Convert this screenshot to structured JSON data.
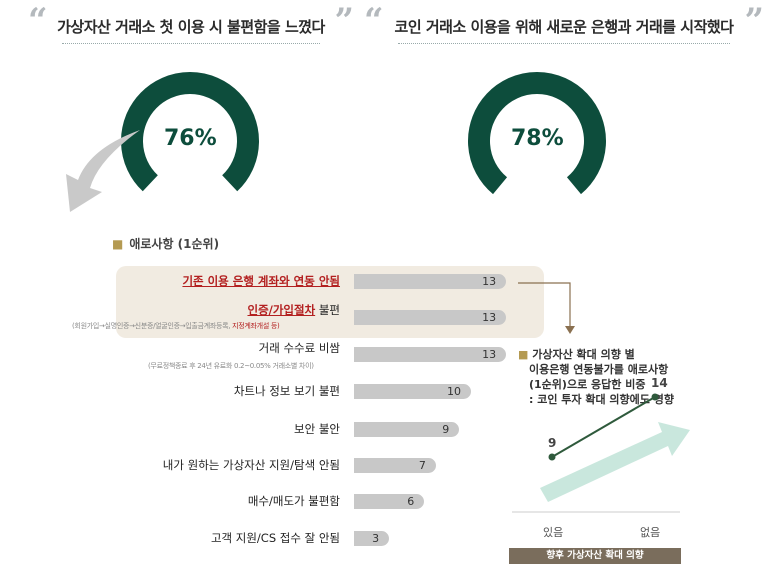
{
  "quotes": [
    {
      "text": "가상자산 거래소 첫 이용 시 불편함을 느꼈다"
    },
    {
      "text": "코인 거래소 이용을 위해 새로운 은행과 거래를 시작했다"
    }
  ],
  "donuts": [
    {
      "value": 76,
      "label": "76%"
    },
    {
      "value": 78,
      "label": "78%"
    }
  ],
  "colors": {
    "donut": "#0d4d3c",
    "bar": "#c8c8c8",
    "highlight": "#f1ebe1",
    "accent_red": "#b32020",
    "line": "#2f5a3c",
    "arrow": "#bfe3d7",
    "x_title_bg": "#7a6d5c"
  },
  "chart_data": [
    {
      "type": "bar",
      "orientation": "horizontal",
      "title": "애로사항 (1순위)",
      "categories": [
        "기존 이용 은행 계좌와 연동 안됨",
        "인증/가입절차 불편",
        "거래 수수료 비쌈",
        "차트나 정보 보기 불편",
        "보안 불안",
        "내가 원하는 가상자산 지원/탐색 안됨",
        "매수/매도가 불편함",
        "고객 지원/CS 접수 잘 안됨"
      ],
      "values": [
        13,
        13,
        13,
        10,
        9,
        7,
        6,
        3
      ],
      "highlighted": [
        0,
        1
      ],
      "notes": {
        "auth": "(회원가입→실명인증→신분증/얼굴인증→입출금계좌등록, ",
        "auth_red": "지정계좌개설 등)",
        "fee": "(무료정책종료 후 24년 유료화 0.2~0.05% 거래소별 차이)"
      },
      "auth_red_part": "인증/가입절차",
      "auth_rest_part": " 불편"
    },
    {
      "type": "line",
      "title": "가상자산 확대 의향 별 이용은행 연동불가를 애로사항 (1순위)으로 응답한 비중 : 코인 투자 확대 의향에도 영향",
      "caption_lines": [
        "가상자산 확대 의향 별",
        "이용은행 연동불가를 애로사항",
        "(1순위)으로 응답한 비중",
        ": 코인 투자 확대 의향에도 영향"
      ],
      "x": [
        "있음",
        "없음"
      ],
      "values": [
        9,
        14
      ],
      "xlabel": "향후 가상자산 확대 의향"
    }
  ]
}
